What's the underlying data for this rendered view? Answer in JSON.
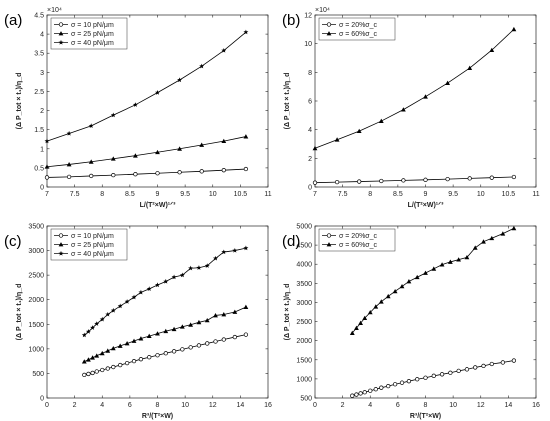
{
  "chart_data": [
    {
      "type": "line",
      "panel_label": "(a)",
      "xlabel": "L/(T²×W)¹ᐟ³",
      "ylabel": "(Δ P_tot × t₁)/η_d",
      "xlim": [
        7,
        11
      ],
      "ylim": [
        0,
        45000
      ],
      "xticks": [
        7,
        7.5,
        8,
        8.5,
        9,
        9.5,
        10,
        10.5,
        11
      ],
      "yticks": [
        0,
        5000,
        10000,
        15000,
        20000,
        25000,
        30000,
        35000,
        40000,
        45000
      ],
      "ytick_labels": [
        "0",
        "0.5",
        "1",
        "1.5",
        "2",
        "2.5",
        "3",
        "3.5",
        "4",
        "4.5"
      ],
      "exponent_label": "×10⁴",
      "legend_position": "top-left",
      "grid": false,
      "series": [
        {
          "name": "σ = 10 pN/μm",
          "marker": "circle",
          "x": [
            7,
            7.4,
            7.8,
            8.2,
            8.6,
            9.0,
            9.4,
            9.8,
            10.2,
            10.6
          ],
          "y": [
            2500,
            2650,
            2900,
            3100,
            3350,
            3600,
            3850,
            4100,
            4400,
            4700
          ]
        },
        {
          "name": "σ = 25 pN/μm",
          "marker": "triangle",
          "x": [
            7,
            7.4,
            7.8,
            8.2,
            8.6,
            9.0,
            9.4,
            9.8,
            10.2,
            10.6
          ],
          "y": [
            5300,
            5900,
            6600,
            7400,
            8200,
            9100,
            10000,
            11000,
            12000,
            13200
          ]
        },
        {
          "name": "σ = 40 pN/μm",
          "marker": "star",
          "x": [
            7,
            7.4,
            7.8,
            8.2,
            8.6,
            9.0,
            9.4,
            9.8,
            10.2,
            10.6
          ],
          "y": [
            12000,
            14000,
            16000,
            18800,
            21500,
            24700,
            28000,
            31600,
            35700,
            40500
          ]
        }
      ]
    },
    {
      "type": "line",
      "panel_label": "(b)",
      "xlabel": "L/(T²×W)¹ᐟ³",
      "ylabel": "(Δ P_tot × t₁)/η_d",
      "xlim": [
        7,
        11
      ],
      "ylim": [
        0,
        120000
      ],
      "xticks": [
        7,
        7.5,
        8,
        8.5,
        9,
        9.5,
        10,
        10.5,
        11
      ],
      "yticks": [
        0,
        20000,
        40000,
        60000,
        80000,
        100000,
        120000
      ],
      "ytick_labels": [
        "0",
        "2",
        "4",
        "6",
        "8",
        "10",
        "12"
      ],
      "exponent_label": "×10⁴",
      "legend_position": "top-left",
      "grid": false,
      "series": [
        {
          "name": "σ = 20%σ_c",
          "marker": "circle",
          "x": [
            7,
            7.4,
            7.8,
            8.2,
            8.6,
            9.0,
            9.4,
            9.8,
            10.2,
            10.6
          ],
          "y": [
            3000,
            3400,
            3800,
            4200,
            4600,
            5000,
            5500,
            6000,
            6500,
            7000
          ]
        },
        {
          "name": "σ = 60%σ_c",
          "marker": "triangle",
          "x": [
            7,
            7.4,
            7.8,
            8.2,
            8.6,
            9.0,
            9.4,
            9.8,
            10.2,
            10.6
          ],
          "y": [
            27000,
            33000,
            39000,
            46000,
            54000,
            63000,
            72500,
            83000,
            95500,
            110000
          ]
        }
      ]
    },
    {
      "type": "line",
      "panel_label": "(c)",
      "xlabel": "R³/(T²×W)",
      "ylabel": "(Δ P_tot × t₁)/η_d",
      "xlim": [
        0,
        16
      ],
      "ylim": [
        0,
        3500
      ],
      "xticks": [
        0,
        2,
        4,
        6,
        8,
        10,
        12,
        14,
        16
      ],
      "yticks": [
        0,
        500,
        1000,
        1500,
        2000,
        2500,
        3000,
        3500
      ],
      "legend_position": "top-left",
      "grid": false,
      "series": [
        {
          "name": "σ = 10 pN/μm",
          "marker": "circle",
          "x": [
            2.7,
            3.0,
            3.3,
            3.6,
            4.0,
            4.4,
            4.8,
            5.3,
            5.8,
            6.3,
            6.8,
            7.4,
            8.0,
            8.6,
            9.2,
            9.8,
            10.4,
            11.0,
            11.6,
            12.2,
            12.8,
            13.6,
            14.4
          ],
          "y": [
            470,
            490,
            510,
            540,
            570,
            600,
            630,
            670,
            710,
            750,
            790,
            830,
            870,
            910,
            950,
            990,
            1030,
            1070,
            1110,
            1150,
            1190,
            1240,
            1290
          ]
        },
        {
          "name": "σ = 25 pN/μm",
          "marker": "triangle",
          "x": [
            2.7,
            3.0,
            3.3,
            3.6,
            4.0,
            4.4,
            4.8,
            5.3,
            5.8,
            6.3,
            6.8,
            7.4,
            8.0,
            8.6,
            9.2,
            9.8,
            10.4,
            11.0,
            11.6,
            12.2,
            12.8,
            13.6,
            14.4
          ],
          "y": [
            740,
            780,
            820,
            860,
            910,
            960,
            1010,
            1060,
            1110,
            1160,
            1210,
            1260,
            1310,
            1360,
            1400,
            1450,
            1490,
            1540,
            1580,
            1680,
            1700,
            1750,
            1850
          ]
        },
        {
          "name": "σ = 40 pN/μm",
          "marker": "star",
          "x": [
            2.7,
            3.0,
            3.3,
            3.6,
            4.0,
            4.4,
            4.8,
            5.3,
            5.8,
            6.3,
            6.8,
            7.4,
            8.0,
            8.6,
            9.2,
            9.8,
            10.4,
            11.0,
            11.6,
            12.2,
            12.8,
            13.6,
            14.4
          ],
          "y": [
            1280,
            1350,
            1430,
            1510,
            1600,
            1700,
            1780,
            1870,
            1960,
            2050,
            2150,
            2220,
            2300,
            2370,
            2460,
            2500,
            2640,
            2650,
            2690,
            2840,
            2970,
            3000,
            3050
          ]
        }
      ]
    },
    {
      "type": "line",
      "panel_label": "(d)",
      "xlabel": "R³/(T²×W)",
      "ylabel": "(Δ P_tot × t₁)/η_d",
      "xlim": [
        0,
        16
      ],
      "ylim": [
        500,
        5000
      ],
      "xticks": [
        0,
        2,
        4,
        6,
        8,
        10,
        12,
        14,
        16
      ],
      "yticks": [
        500,
        1000,
        1500,
        2000,
        2500,
        3000,
        3500,
        4000,
        4500,
        5000
      ],
      "legend_position": "top-left",
      "grid": false,
      "series": [
        {
          "name": "σ = 20%σ_c",
          "marker": "circle",
          "x": [
            2.7,
            3.0,
            3.3,
            3.6,
            4.0,
            4.4,
            4.8,
            5.3,
            5.8,
            6.3,
            6.8,
            7.4,
            8.0,
            8.6,
            9.2,
            9.8,
            10.4,
            11.0,
            11.6,
            12.2,
            12.8,
            13.6,
            14.4
          ],
          "y": [
            560,
            590,
            620,
            650,
            690,
            730,
            770,
            810,
            860,
            900,
            940,
            990,
            1030,
            1080,
            1120,
            1160,
            1210,
            1250,
            1300,
            1340,
            1390,
            1430,
            1480
          ]
        },
        {
          "name": "σ = 60%σ_c",
          "marker": "triangle",
          "x": [
            2.7,
            3.0,
            3.3,
            3.6,
            4.0,
            4.4,
            4.8,
            5.3,
            5.8,
            6.3,
            6.8,
            7.4,
            8.0,
            8.6,
            9.2,
            9.8,
            10.4,
            11.0,
            11.6,
            12.2,
            12.8,
            13.6,
            14.4
          ],
          "y": [
            2200,
            2330,
            2460,
            2590,
            2740,
            2890,
            3020,
            3160,
            3290,
            3420,
            3550,
            3660,
            3770,
            3880,
            3990,
            4060,
            4120,
            4180,
            4430,
            4590,
            4680,
            4800,
            4940
          ]
        }
      ]
    }
  ]
}
